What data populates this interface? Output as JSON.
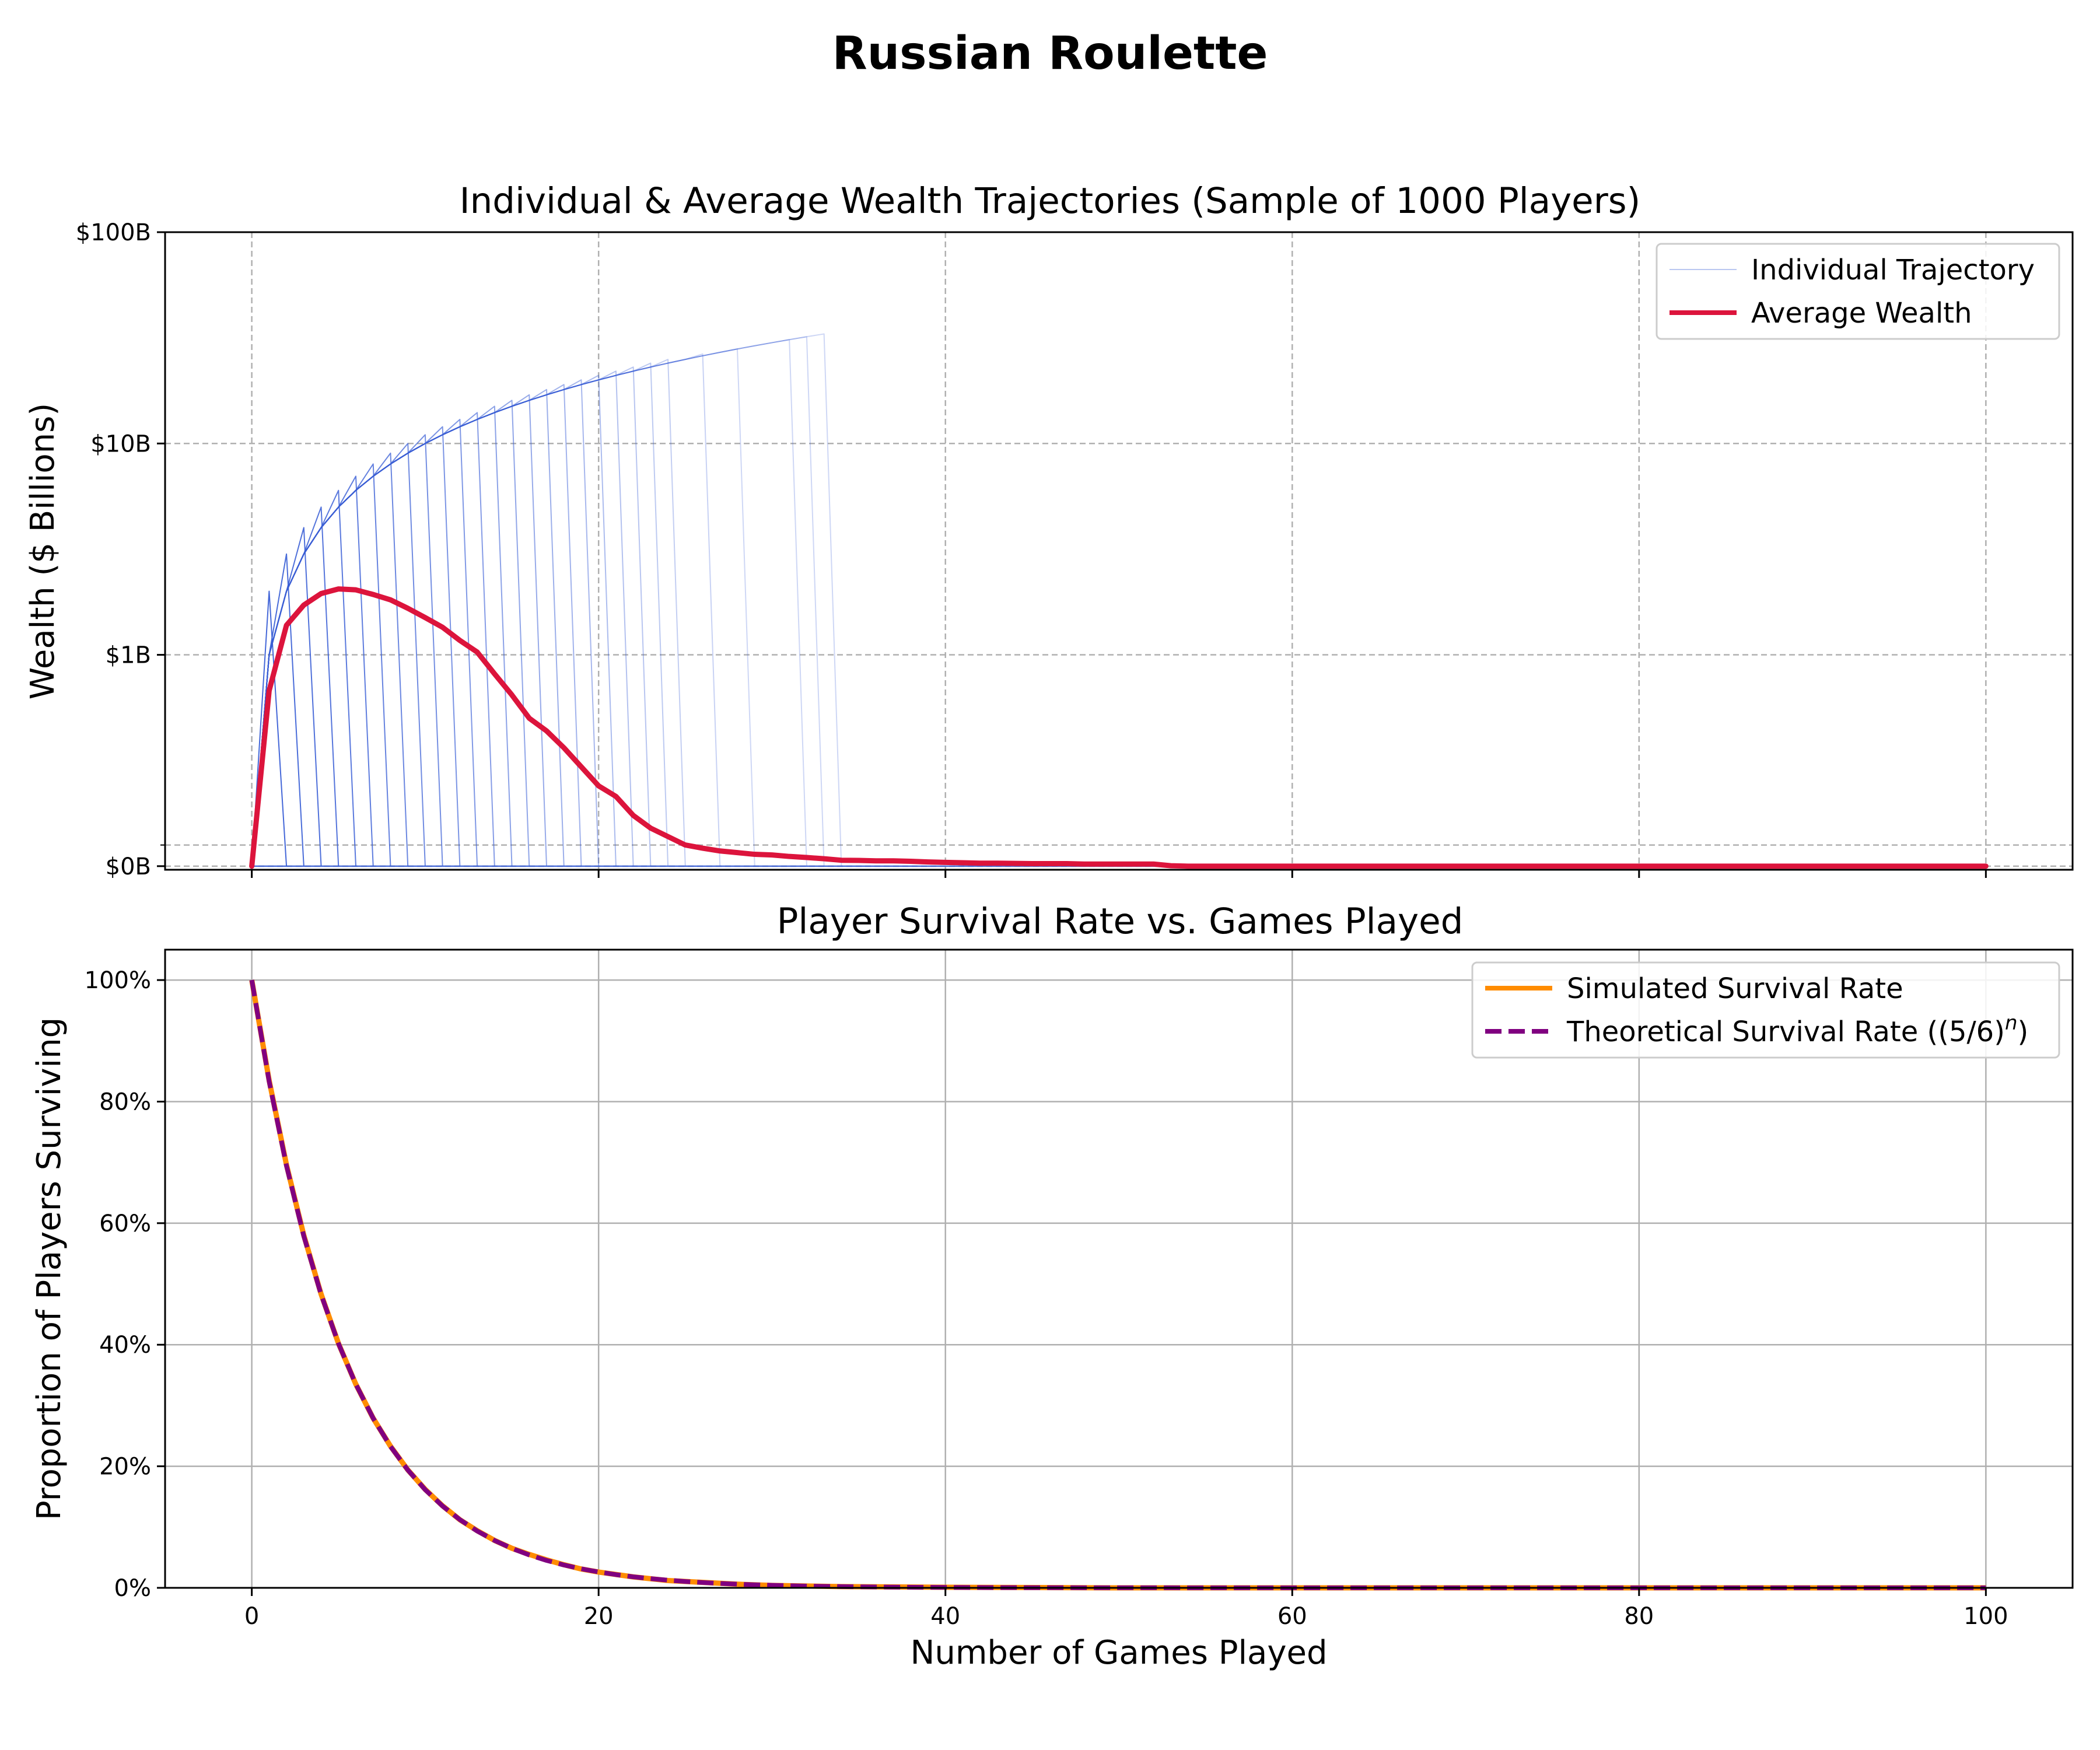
{
  "figure": {
    "suptitle": "Russian Roulette"
  },
  "chart_data": [
    {
      "type": "line",
      "title": "Individual & Average Wealth Trajectories (Sample of 1000 Players)",
      "xlabel": "",
      "ylabel": "Wealth ($ Billions)",
      "xlim": [
        -5,
        105
      ],
      "yscale": "symlog",
      "ylim": [
        -0.017,
        100
      ],
      "yticks": [
        {
          "value": 0,
          "label": "$0B"
        },
        {
          "value": 1,
          "label": "$1B"
        },
        {
          "value": 10,
          "label": "$10B"
        },
        {
          "value": 100,
          "label": "$100B"
        }
      ],
      "grid": true,
      "legend": "top-right",
      "legend_entries": [
        "Individual Trajectory",
        "Average Wealth"
      ],
      "colors": {
        "individual": "#3a5fd6",
        "average": "#dc143c"
      },
      "individual": {
        "name": "Individual Trajectory",
        "peak_wealth_by_death_game": [
          [
            2,
            2.0
          ],
          [
            3,
            3.0
          ],
          [
            4,
            4.0
          ],
          [
            5,
            5.0
          ],
          [
            6,
            6.0
          ],
          [
            7,
            7.0
          ],
          [
            8,
            8.0
          ],
          [
            9,
            9.0
          ],
          [
            10,
            10.0
          ],
          [
            11,
            11.0
          ],
          [
            12,
            12.0
          ],
          [
            13,
            13.0
          ],
          [
            14,
            14.0
          ],
          [
            15,
            15.0
          ],
          [
            16,
            16.0
          ],
          [
            17,
            17.0
          ],
          [
            18,
            18.0
          ],
          [
            19,
            19.0
          ],
          [
            20,
            20.0
          ],
          [
            21,
            21.0
          ],
          [
            22,
            22.0
          ],
          [
            23,
            23.0
          ],
          [
            24,
            24.0
          ],
          [
            25,
            25.0
          ],
          [
            27,
            26.5
          ],
          [
            29,
            28.0
          ],
          [
            32,
            31.0
          ],
          [
            33,
            32.0
          ],
          [
            34,
            33.0
          ]
        ]
      },
      "average": {
        "name": "Average Wealth",
        "points": [
          [
            0,
            0
          ],
          [
            1,
            0.83
          ],
          [
            2,
            1.38
          ],
          [
            3,
            1.72
          ],
          [
            4,
            1.95
          ],
          [
            5,
            2.05
          ],
          [
            6,
            2.03
          ],
          [
            7,
            1.93
          ],
          [
            8,
            1.82
          ],
          [
            9,
            1.66
          ],
          [
            10,
            1.5
          ],
          [
            11,
            1.35
          ],
          [
            12,
            1.17
          ],
          [
            13,
            1.03
          ],
          [
            14,
            0.91
          ],
          [
            15,
            0.81
          ],
          [
            16,
            0.7
          ],
          [
            17,
            0.64
          ],
          [
            18,
            0.56
          ],
          [
            19,
            0.47
          ],
          [
            20,
            0.38
          ],
          [
            21,
            0.33
          ],
          [
            22,
            0.24
          ],
          [
            23,
            0.18
          ],
          [
            24,
            0.14
          ],
          [
            25,
            0.1
          ],
          [
            26,
            0.085
          ],
          [
            27,
            0.072
          ],
          [
            28,
            0.064
          ],
          [
            29,
            0.056
          ],
          [
            30,
            0.053
          ],
          [
            31,
            0.046
          ],
          [
            32,
            0.041
          ],
          [
            33,
            0.035
          ],
          [
            34,
            0.028
          ],
          [
            35,
            0.027
          ],
          [
            36,
            0.025
          ],
          [
            37,
            0.025
          ],
          [
            38,
            0.023
          ],
          [
            39,
            0.02
          ],
          [
            40,
            0.018
          ],
          [
            41,
            0.016
          ],
          [
            42,
            0.014
          ],
          [
            43,
            0.014
          ],
          [
            44,
            0.013
          ],
          [
            45,
            0.012
          ],
          [
            46,
            0.012
          ],
          [
            47,
            0.012
          ],
          [
            48,
            0.01
          ],
          [
            49,
            0.01
          ],
          [
            50,
            0.01
          ],
          [
            51,
            0.01
          ],
          [
            52,
            0.01
          ],
          [
            53,
            0.002
          ],
          [
            54,
            0
          ],
          [
            60,
            0
          ],
          [
            70,
            0
          ],
          [
            80,
            0
          ],
          [
            90,
            0
          ],
          [
            100,
            0
          ]
        ]
      }
    },
    {
      "type": "line",
      "title": "Player Survival Rate vs. Games Played",
      "xlabel": "Number of Games Played",
      "ylabel": "Proportion of Players Surviving",
      "xlim": [
        -5,
        105
      ],
      "ylim": [
        0,
        1.05
      ],
      "xticks": [
        0,
        20,
        40,
        60,
        80,
        100
      ],
      "yticks": [
        {
          "value": 0,
          "label": "0%"
        },
        {
          "value": 0.2,
          "label": "20%"
        },
        {
          "value": 0.4,
          "label": "40%"
        },
        {
          "value": 0.6,
          "label": "60%"
        },
        {
          "value": 0.8,
          "label": "80%"
        },
        {
          "value": 1.0,
          "label": "100%"
        }
      ],
      "grid": true,
      "legend": "top-right",
      "series": [
        {
          "name": "Simulated Survival Rate",
          "color": "#ff8c00",
          "points": [
            [
              0,
              1.0
            ],
            [
              1,
              0.835
            ],
            [
              2,
              0.696
            ],
            [
              3,
              0.58
            ],
            [
              4,
              0.483
            ],
            [
              5,
              0.402
            ],
            [
              6,
              0.335
            ],
            [
              7,
              0.279
            ],
            [
              8,
              0.233
            ],
            [
              9,
              0.194
            ],
            [
              10,
              0.162
            ],
            [
              11,
              0.135
            ],
            [
              12,
              0.112
            ],
            [
              13,
              0.094
            ],
            [
              14,
              0.078
            ],
            [
              15,
              0.065
            ],
            [
              16,
              0.055
            ],
            [
              17,
              0.046
            ],
            [
              18,
              0.038
            ],
            [
              19,
              0.031
            ],
            [
              20,
              0.026
            ],
            [
              22,
              0.018
            ],
            [
              24,
              0.012
            ],
            [
              26,
              0.009
            ],
            [
              28,
              0.006
            ],
            [
              30,
              0.004
            ],
            [
              34,
              0.002
            ],
            [
              40,
              0.001
            ],
            [
              50,
              0
            ],
            [
              60,
              0
            ],
            [
              70,
              0
            ],
            [
              80,
              0
            ],
            [
              90,
              0
            ],
            [
              100,
              0
            ]
          ]
        },
        {
          "name": "Theoretical Survival Rate ((5/6)",
          "name_superscript": "n",
          "name_suffix": ")",
          "color": "#800080",
          "formula_base": 0.8333333
        }
      ]
    }
  ]
}
